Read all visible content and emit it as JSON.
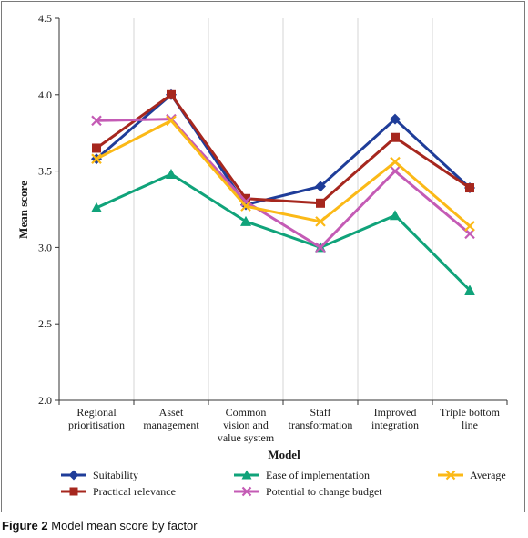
{
  "figure": {
    "caption_number": "Figure 2",
    "caption_text": "Model mean score by factor"
  },
  "chart_data": {
    "type": "line",
    "xlabel": "Model",
    "ylabel": "Mean score",
    "ylim": [
      2.0,
      4.5
    ],
    "yticks": [
      "2.0",
      "2.5",
      "3.0",
      "3.5",
      "4.0",
      "4.5"
    ],
    "grid": "vertical",
    "legend_position": "bottom",
    "categories": [
      [
        "Regional",
        "prioritisation"
      ],
      [
        "Asset",
        "management"
      ],
      [
        "Common",
        "vision and",
        "value system"
      ],
      [
        "Staff",
        "transformation"
      ],
      [
        "Improved",
        "integration"
      ],
      [
        "Triple bottom",
        "line"
      ]
    ],
    "series": [
      {
        "name": "Suitability",
        "color": "#1f3d99",
        "marker": "diamond",
        "values": [
          3.58,
          4.0,
          3.28,
          3.4,
          3.84,
          3.39
        ]
      },
      {
        "name": "Practical relevance",
        "color": "#a6271e",
        "marker": "square",
        "values": [
          3.65,
          4.0,
          3.32,
          3.29,
          3.72,
          3.39
        ]
      },
      {
        "name": "Ease of implementation",
        "color": "#10a37a",
        "marker": "triangle",
        "values": [
          3.26,
          3.48,
          3.17,
          3.0,
          3.21,
          2.72
        ]
      },
      {
        "name": "Potential to change budget",
        "color": "#c45bb5",
        "marker": "x",
        "values": [
          3.83,
          3.84,
          3.3,
          3.0,
          3.5,
          3.09
        ]
      },
      {
        "name": "Average",
        "color": "#fbb917",
        "marker": "x",
        "values": [
          3.58,
          3.83,
          3.27,
          3.17,
          3.56,
          3.14
        ]
      }
    ]
  }
}
